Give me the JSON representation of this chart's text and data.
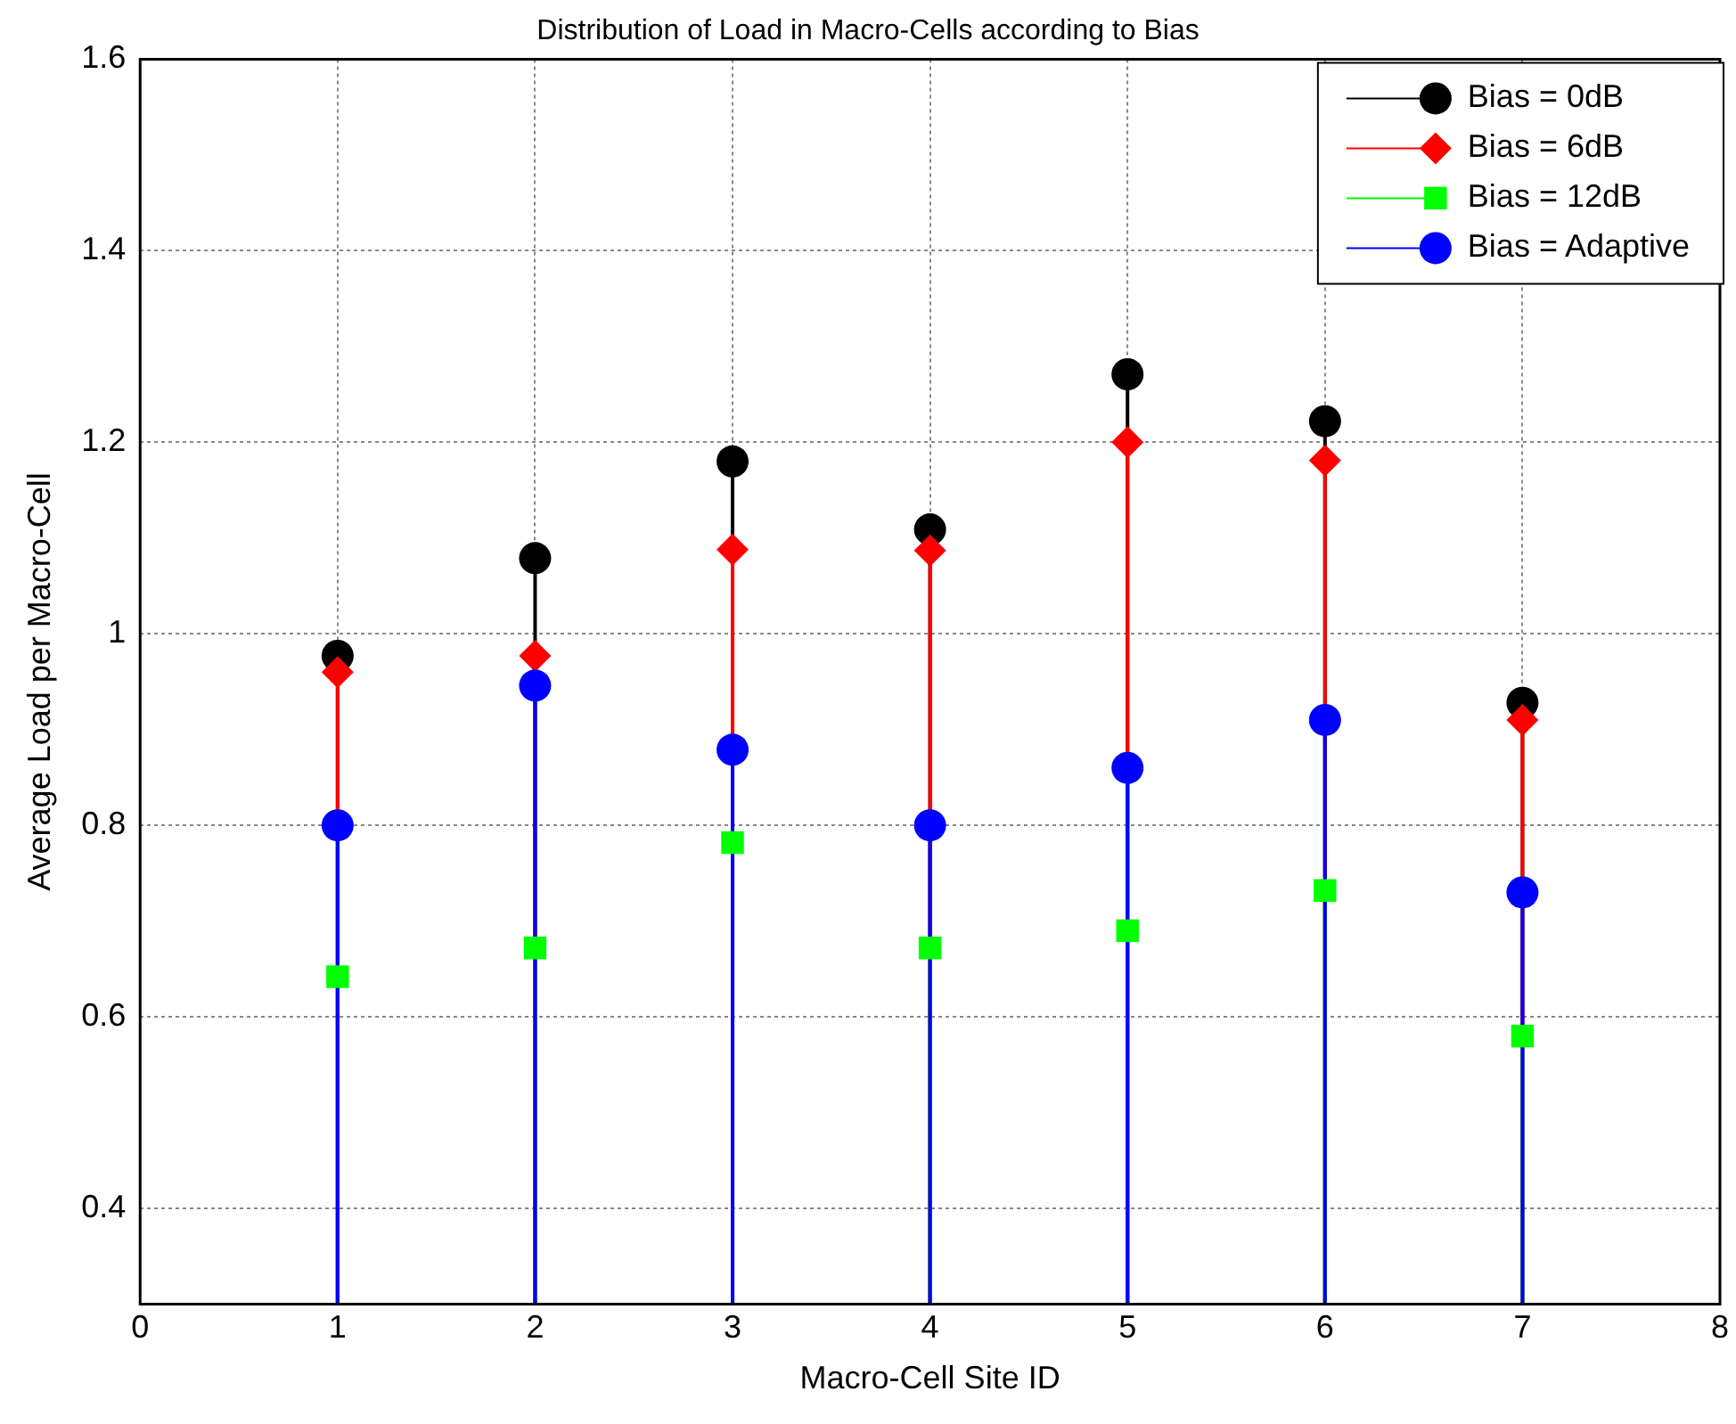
{
  "chart_data": {
    "type": "lollipop",
    "title": "Distribution of Load in Macro-Cells according to Bias",
    "xlabel": "Macro-Cell Site ID",
    "ylabel": "Average Load per Macro-Cell",
    "x": [
      1,
      2,
      3,
      4,
      5,
      6,
      7
    ],
    "series": [
      {
        "name": "Bias = 0dB",
        "color": "#000000",
        "marker": "circle",
        "values": [
          0.977,
          1.079,
          1.18,
          1.109,
          1.271,
          1.222,
          0.928
        ]
      },
      {
        "name": "Bias = 6dB",
        "color": "#ff0000",
        "marker": "diamond",
        "values": [
          0.96,
          0.977,
          1.088,
          1.087,
          1.2,
          1.181,
          0.91
        ]
      },
      {
        "name": "Bias = 12dB",
        "color": "#00ff00",
        "marker": "square",
        "values": [
          0.642,
          0.672,
          0.782,
          0.672,
          0.69,
          0.732,
          0.58
        ]
      },
      {
        "name": "Bias = Adaptive",
        "color": "#0000ff",
        "marker": "circle",
        "values": [
          0.8,
          0.946,
          0.879,
          0.8,
          0.86,
          0.91,
          0.73
        ]
      }
    ],
    "xlim": [
      0,
      8
    ],
    "xticks": [
      0,
      1,
      2,
      3,
      4,
      5,
      6,
      7,
      8
    ],
    "ylim": [
      0.3,
      1.6
    ],
    "yticks": [
      0.4,
      0.6,
      0.8,
      1,
      1.2,
      1.4,
      1.6
    ],
    "grid": true,
    "legend": "top right"
  }
}
